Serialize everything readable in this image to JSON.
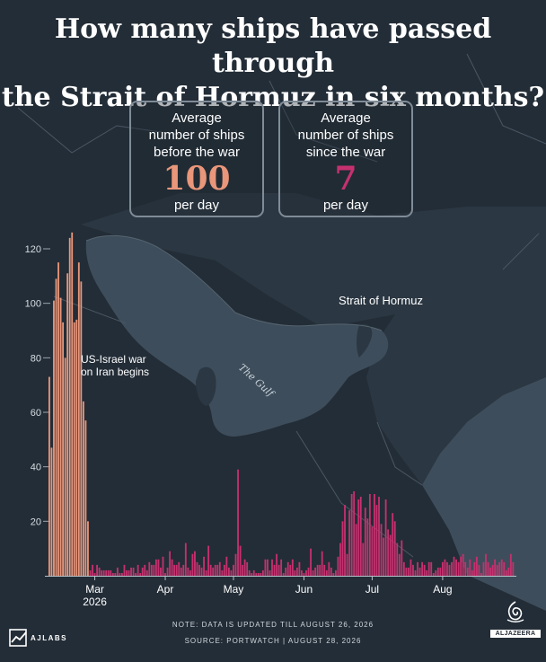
{
  "title": {
    "line1": "How many ships have passed through",
    "line2": "the Strait of Hormuz in six months?"
  },
  "stats": {
    "before": {
      "line1": "Average",
      "line2": "number of ships",
      "line3": "before the war",
      "value": "100",
      "unit": "per day"
    },
    "after": {
      "line1": "Average",
      "line2": "number of ships",
      "line3": "since the war",
      "value": "7",
      "unit": "per day"
    }
  },
  "map": {
    "gulf_label": "The Gulf",
    "strait_label": "Strait of Hormuz"
  },
  "chart_data": {
    "type": "bar",
    "ylim": [
      0,
      125
    ],
    "y_ticks": [
      20,
      40,
      60,
      80,
      100,
      120
    ],
    "x_tick_labels": [
      "Mar",
      "Apr",
      "May",
      "Jun",
      "Jul",
      "Aug"
    ],
    "x_year_label": "2026",
    "colors": {
      "before_war": "#e9967a",
      "after_war": "#c5316e"
    },
    "annotation": {
      "line1": "US-Israel war",
      "line2": "on Iran begins"
    },
    "series": [
      {
        "values": [
          73,
          47,
          101,
          109,
          115,
          102,
          93,
          80,
          111,
          124,
          126,
          93,
          94,
          115,
          108,
          64,
          57,
          20,
          2,
          4,
          1,
          4,
          3,
          2,
          2,
          2,
          2,
          2,
          1,
          1,
          3,
          1,
          1,
          4,
          2,
          2,
          3,
          3,
          1,
          4,
          1,
          3,
          4,
          2,
          5,
          4,
          4,
          6,
          6,
          3,
          7,
          1,
          3,
          9,
          6,
          4,
          4,
          5,
          3,
          4,
          12,
          3,
          2,
          8,
          9,
          5,
          4,
          3,
          7,
          2,
          11,
          4,
          3,
          4,
          4,
          5,
          2,
          4,
          7,
          3,
          2,
          4,
          8,
          39,
          11,
          4,
          6,
          5,
          2,
          1,
          2,
          1,
          1,
          1,
          2,
          6,
          6,
          2,
          6,
          4,
          8,
          4,
          6,
          1,
          3,
          5,
          4,
          6,
          2,
          3,
          5,
          2,
          1,
          2,
          3,
          10,
          2,
          3,
          4,
          4,
          9,
          4,
          2,
          5,
          3,
          1,
          2,
          7,
          12,
          20,
          26,
          8,
          24,
          30,
          31,
          19,
          28,
          29,
          12,
          25,
          21,
          30,
          18,
          30,
          26,
          29,
          19,
          14,
          28,
          17,
          15,
          23,
          20,
          12,
          8,
          13,
          5,
          3,
          3,
          6,
          4,
          2,
          5,
          3,
          5,
          4,
          2,
          5,
          5,
          1,
          2,
          3,
          3,
          5,
          6,
          5,
          4,
          5,
          7,
          6,
          5,
          7,
          8,
          5,
          3,
          6,
          2,
          5,
          7,
          4,
          1,
          5,
          8,
          5,
          3,
          4,
          6,
          4,
          5,
          6,
          5,
          2,
          3,
          8,
          5
        ]
      }
    ],
    "war_start_index": 18,
    "x_tick_indices": [
      20,
      51,
      81,
      112,
      142,
      173
    ]
  },
  "footer": {
    "note": "NOTE: DATA IS UPDATED TILL AUGUST 26, 2026",
    "source": "SOURCE:  PORTWATCH     |     AUGUST 28, 2026"
  },
  "branding": {
    "ajlabs": "AJLABS",
    "aljazeera": "ALJAZEERA"
  }
}
